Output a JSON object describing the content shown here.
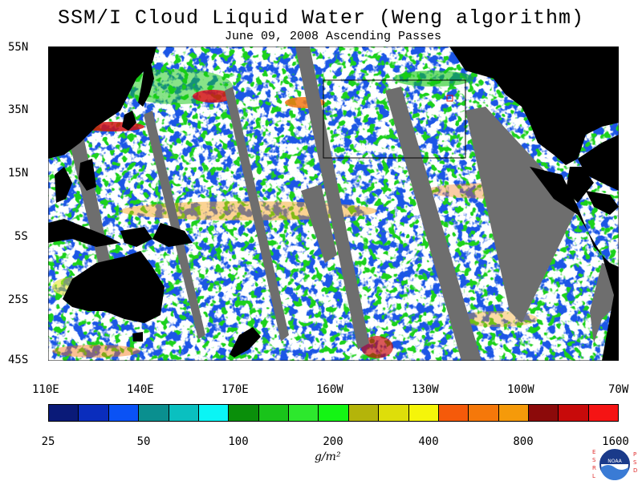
{
  "title": "SSM/I Cloud Liquid Water (Weng algorithm)",
  "subtitle": "June 09, 2008  Ascending Passes",
  "lat_labels": [
    "55N",
    "35N",
    "15N",
    "5S",
    "25S",
    "45S"
  ],
  "lon_labels": [
    "110E",
    "140E",
    "170E",
    "160W",
    "130W",
    "100W",
    "70W"
  ],
  "colorbar": {
    "colors": [
      "#0a1a78",
      "#0a2dbd",
      "#0a52f5",
      "#0a8f8f",
      "#0ac0c0",
      "#0af5f5",
      "#0a8f0a",
      "#19c41a",
      "#2de82d",
      "#14f514",
      "#b4b40a",
      "#dede0a",
      "#f5f50a",
      "#f55a0a",
      "#f5780a",
      "#f59a0a",
      "#8c0a0a",
      "#c80a0a",
      "#f51414"
    ],
    "tick_labels": [
      "25",
      "50",
      "100",
      "200",
      "400",
      "800",
      "1600"
    ],
    "unit": "g/m²"
  },
  "map_colors": {
    "land": "#000000",
    "no_data": "#6e6e6e",
    "ocean": "#ffffff"
  },
  "logo": {
    "text": "NOAA",
    "left_text": "ESRL",
    "right_text": "PSD"
  }
}
